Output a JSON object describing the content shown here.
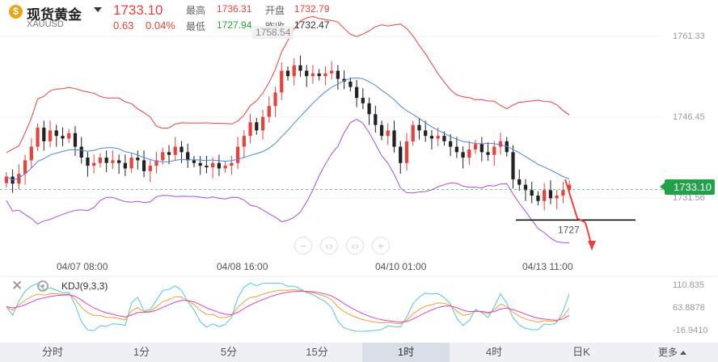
{
  "header": {
    "title": "现货黄金",
    "symbol": "XAUUSD",
    "price": "1733.10",
    "change": "0.63",
    "change_pct": "0.04%",
    "stats": {
      "high_label": "最高",
      "high": "1736.31",
      "open_label": "开盘",
      "open": "1732.79",
      "low_label": "最低",
      "low": "1727.94",
      "prev_label": "昨收",
      "prev": "1732.47"
    }
  },
  "chart": {
    "price_axis": [
      "1761.33",
      "1746.45",
      "1731.56"
    ],
    "current_price_tag": "1733.10",
    "period_high_label": "1758.54",
    "support_label": "1727",
    "time_axis": [
      "04/07 08:00",
      "04/08 16:00",
      "04/10 01:00",
      "04/13 11:00"
    ],
    "colors": {
      "up": "#e8423c",
      "down": "#222222",
      "upper_band": "#e8423c",
      "mid_band": "#4a86e8",
      "lower_band": "#a64de6"
    }
  },
  "chart_data": {
    "type": "candlestick",
    "title": "",
    "candles_close": [
      1735.5,
      1734.2,
      1736.0,
      1738.5,
      1741.0,
      1744.5,
      1742.0,
      1744.0,
      1743.0,
      1742.5,
      1743.5,
      1741.0,
      1739.0,
      1737.5,
      1738.0,
      1739.0,
      1738.0,
      1738.5,
      1738.0,
      1737.0,
      1739.0,
      1738.5,
      1736.5,
      1737.5,
      1738.5,
      1740.0,
      1739.5,
      1741.0,
      1740.0,
      1738.5,
      1738.0,
      1737.5,
      1737.2,
      1738.0,
      1737.0,
      1737.5,
      1738.0,
      1741.0,
      1743.0,
      1745.5,
      1744.0,
      1746.5,
      1748.5,
      1751.0,
      1755.0,
      1754.0,
      1756.0,
      1755.0,
      1754.0,
      1754.5,
      1754.0,
      1754.5,
      1755.0,
      1753.5,
      1753.0,
      1752.0,
      1750.0,
      1749.0,
      1747.0,
      1745.0,
      1743.0,
      1744.0,
      1741.0,
      1738.0,
      1742.0,
      1745.0,
      1744.0,
      1743.0,
      1742.5,
      1743.0,
      1742.0,
      1741.0,
      1740.0,
      1739.0,
      1740.5,
      1741.5,
      1740.0,
      1739.5,
      1741.0,
      1742.0,
      1740.0,
      1735.0,
      1734.0,
      1733.0,
      1732.0,
      1731.0,
      1733.0,
      1731.5,
      1732.0,
      1733.0,
      1734.0
    ],
    "price_axis_ticks": [
      1761.33,
      1746.45,
      1731.56
    ],
    "kdj": {
      "label": "KDJ(9,3,3)",
      "axis": [
        "110.835",
        "63.8878",
        "-16.9410"
      ]
    }
  },
  "controls": {
    "zoom_buttons": [
      "−",
      "⟨⟩",
      "⟨⟩",
      "+"
    ],
    "kdj_label": "KDJ(9,3,3)"
  },
  "tabs": [
    {
      "label": "分时",
      "active": false
    },
    {
      "label": "1分",
      "active": false
    },
    {
      "label": "5分",
      "active": false
    },
    {
      "label": "15分",
      "active": false
    },
    {
      "label": "1时",
      "active": true
    },
    {
      "label": "4时",
      "active": false
    },
    {
      "label": "日K",
      "active": false
    }
  ],
  "more_label": "更多"
}
